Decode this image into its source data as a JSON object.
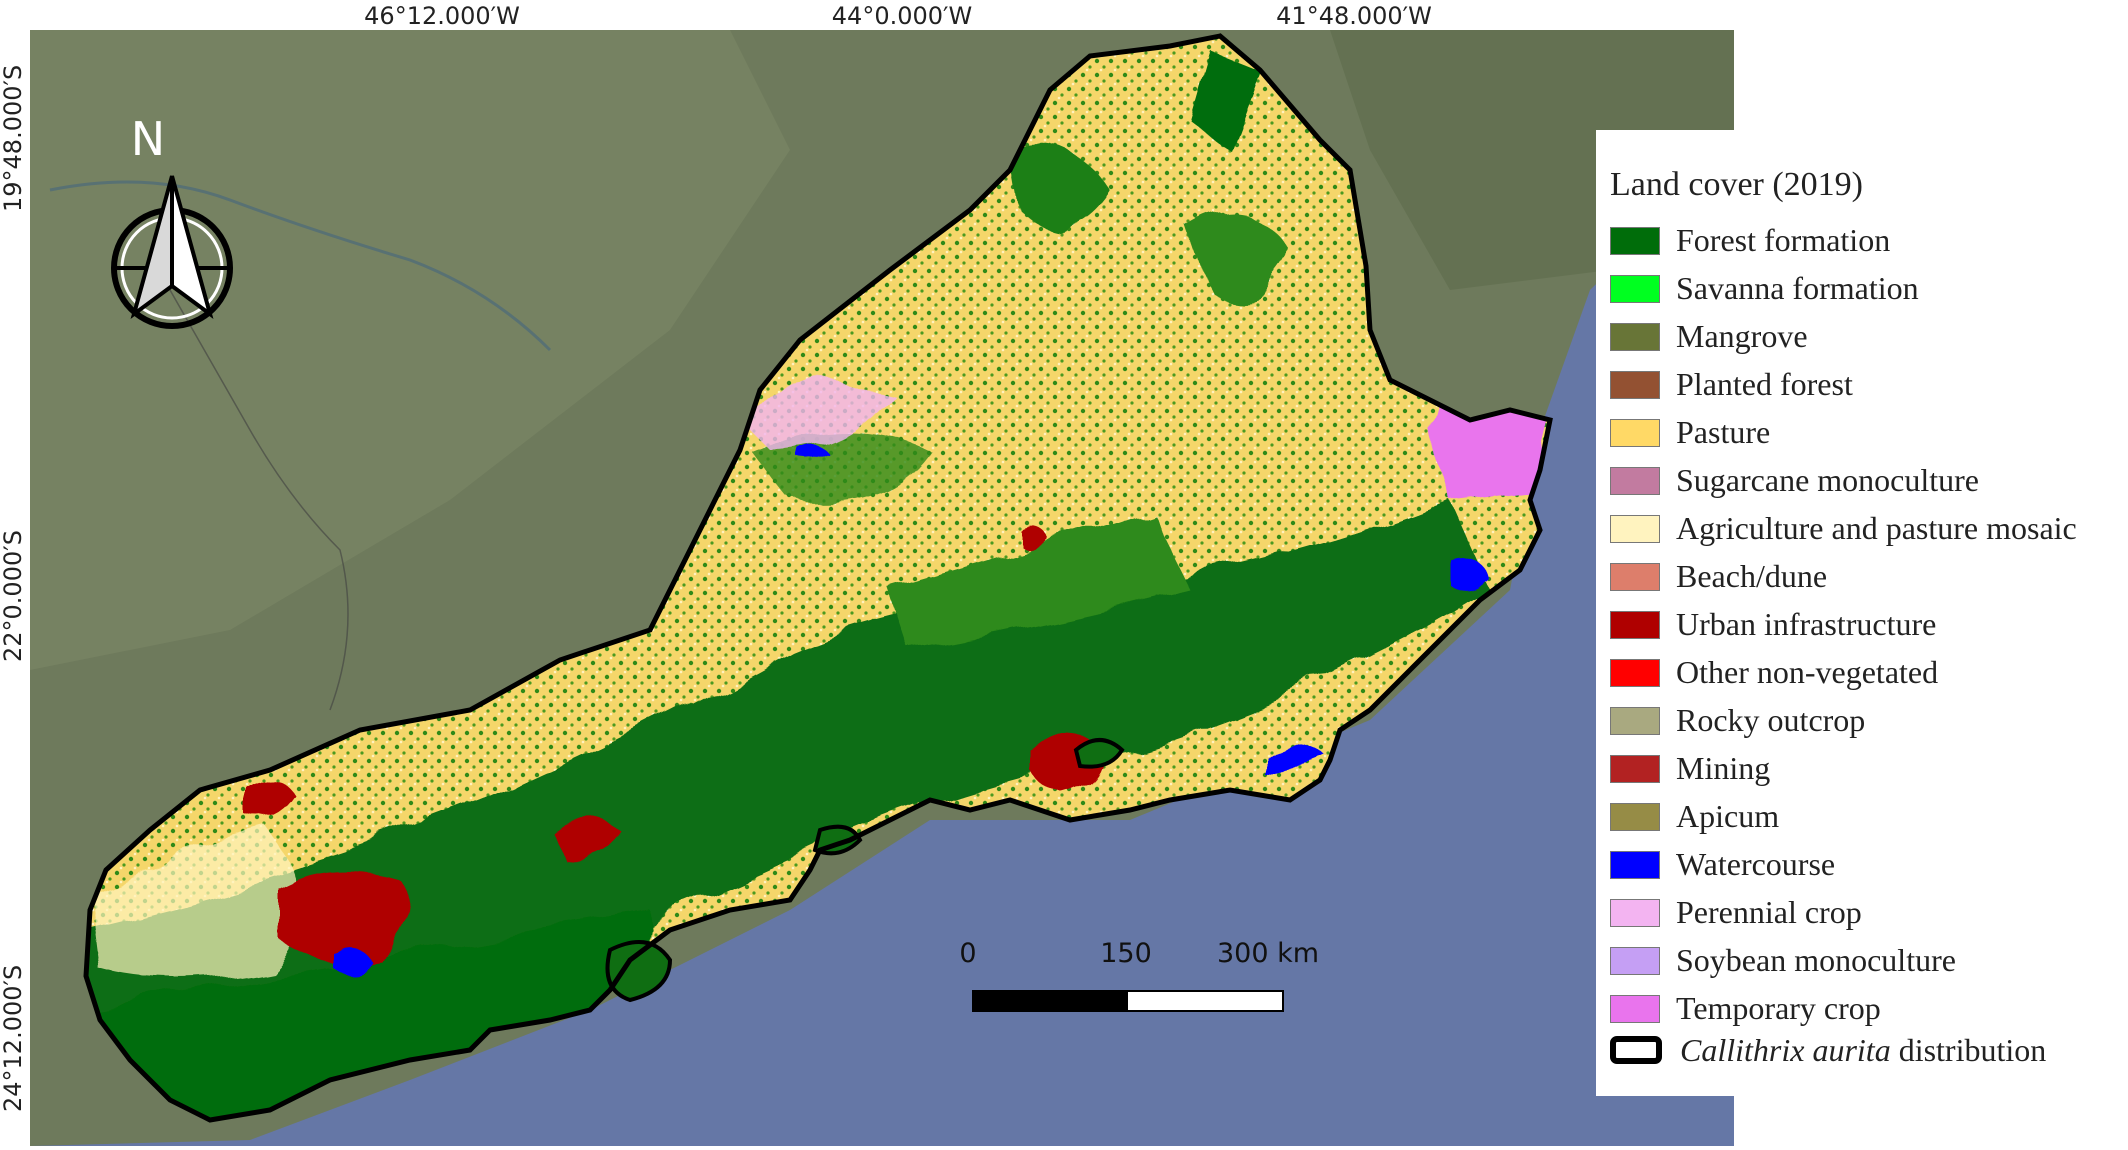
{
  "map": {
    "coordinates": {
      "top": [
        "46°12.000′W",
        "44°0.000′W",
        "41°48.000′W"
      ],
      "left": [
        "19°48.000′S",
        "22°0.000′S",
        "24°12.000′S"
      ]
    },
    "north_label": "N",
    "scale": {
      "ticks": [
        "0",
        "150",
        "300 km"
      ],
      "unit": "km"
    },
    "colors": {
      "ocean": "#6577a6",
      "land_imagery": "#6e7a5c",
      "boundary": "#000000"
    }
  },
  "legend": {
    "title": "Land cover (2019)",
    "items": [
      {
        "label": "Forest formation",
        "color": "#006d0a"
      },
      {
        "label": "Savanna formation",
        "color": "#00ff20"
      },
      {
        "label": "Mangrove",
        "color": "#687537"
      },
      {
        "label": "Planted forest",
        "color": "#935132"
      },
      {
        "label": "Pasture",
        "color": "#ffd966"
      },
      {
        "label": "Sugarcane monoculture",
        "color": "#c27ba0"
      },
      {
        "label": "Agriculture and pasture mosaic",
        "color": "#fff3bf"
      },
      {
        "label": "Beach/dune",
        "color": "#dd7e6b"
      },
      {
        "label": "Urban infrastructure",
        "color": "#af0000"
      },
      {
        "label": "Other non-vegetated",
        "color": "#ff0000"
      },
      {
        "label": "Rocky outcrop",
        "color": "#a9a980"
      },
      {
        "label": "Mining",
        "color": "#b22222"
      },
      {
        "label": "Apicum",
        "color": "#968c46"
      },
      {
        "label": "Watercourse",
        "color": "#0000ff"
      },
      {
        "label": "Perennial crop",
        "color": "#f3b4f1"
      },
      {
        "label": "Soybean monoculture",
        "color": "#c59ff4"
      },
      {
        "label": "Temporary crop",
        "color": "#e974ed"
      }
    ],
    "distribution": {
      "species": "Callithrix aurita",
      "suffix": " distribution"
    }
  }
}
